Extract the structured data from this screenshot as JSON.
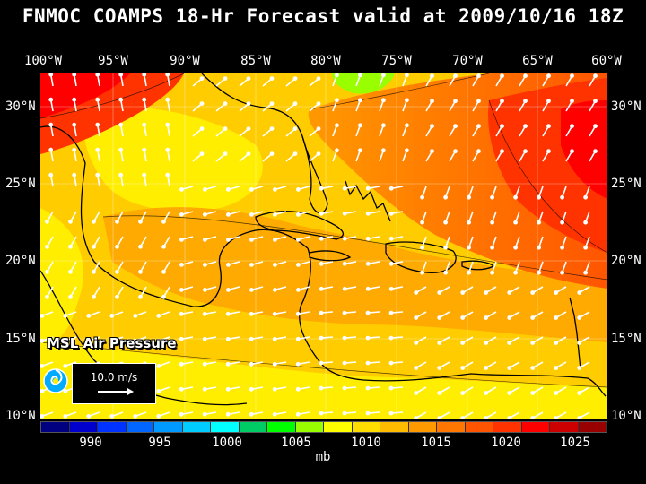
{
  "title": "FNMOC COAMPS 18-Hr Forecast valid at 2009/10/16 18Z",
  "longitudes": [
    "100°W",
    "95°W",
    "90°W",
    "85°W",
    "80°W",
    "75°W",
    "70°W",
    "65°W",
    "60°W"
  ],
  "latitudes": [
    "30°N",
    "25°N",
    "20°N",
    "15°N",
    "10°N"
  ],
  "overlay": {
    "field_name": "MSL Air Pressure",
    "scale_vector": "10.0 m/s",
    "logo_icon": "fnmoc-logo-icon"
  },
  "colorbar": {
    "units": "mb",
    "labels": [
      "990",
      "995",
      "1000",
      "1005",
      "1010",
      "1015",
      "1020",
      "1025"
    ],
    "colors": [
      "#000080",
      "#0000cc",
      "#0033ff",
      "#0066ff",
      "#0099ff",
      "#00ccff",
      "#00ffff",
      "#00cc66",
      "#00ff00",
      "#99ff00",
      "#ffff00",
      "#ffdd00",
      "#ffbb00",
      "#ff9900",
      "#ff7700",
      "#ff5500",
      "#ff3300",
      "#ff0000",
      "#cc0000",
      "#990000"
    ]
  },
  "map": {
    "background_color": "#ffcc00",
    "land_outline_color": "#000000",
    "wind_arrow_color": "#ffffff"
  }
}
